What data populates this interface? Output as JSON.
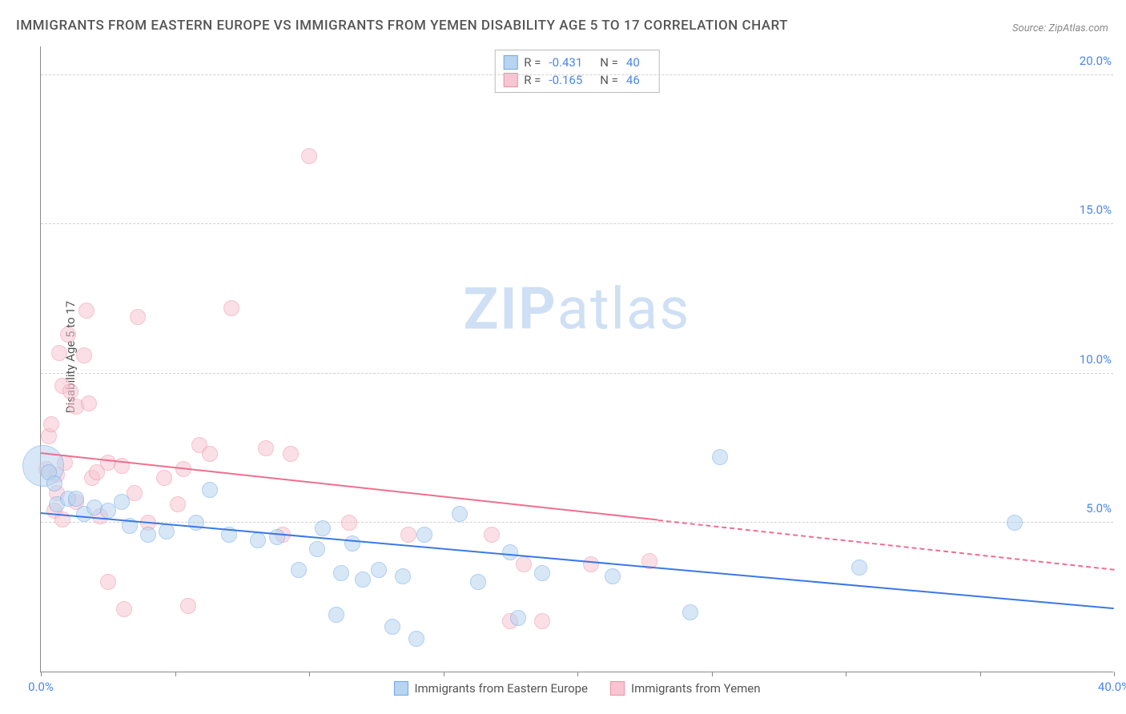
{
  "title": "IMMIGRANTS FROM EASTERN EUROPE VS IMMIGRANTS FROM YEMEN DISABILITY AGE 5 TO 17 CORRELATION CHART",
  "source": "Source: ZipAtlas.com",
  "ylabel": "Disability Age 5 to 17",
  "watermark_bold": "ZIP",
  "watermark_rest": "atlas",
  "chart": {
    "type": "scatter",
    "xlim": [
      0,
      40
    ],
    "ylim": [
      0,
      21
    ],
    "x_ticks": [
      0,
      5,
      10,
      15,
      20,
      25,
      30,
      35,
      40
    ],
    "x_tick_labels": {
      "0": "0.0%",
      "40": "40.0%"
    },
    "y_ticks": [
      5,
      10,
      15,
      20
    ],
    "y_tick_labels": [
      "5.0%",
      "10.0%",
      "15.0%",
      "20.0%"
    ],
    "grid_color": "#d0d0d0",
    "background_color": "#ffffff",
    "axis_color": "#888888"
  },
  "series": [
    {
      "key": "eastern_europe",
      "label": "Immigrants from Eastern Europe",
      "fill": "#b8d4f0",
      "stroke": "#6fa8e8",
      "fill_opacity": 0.55,
      "R": "-0.431",
      "N": "40",
      "marker_radius": 10,
      "trend": {
        "x1": 0,
        "y1": 5.3,
        "x2": 40,
        "y2": 2.1,
        "color": "#3b78e7",
        "solid_until_x": 40
      },
      "points": [
        [
          0.1,
          6.9,
          26
        ],
        [
          0.3,
          6.7
        ],
        [
          0.5,
          6.3
        ],
        [
          0.6,
          5.6
        ],
        [
          1.0,
          5.8
        ],
        [
          1.3,
          5.8
        ],
        [
          1.6,
          5.3
        ],
        [
          2.0,
          5.5
        ],
        [
          2.5,
          5.4
        ],
        [
          3.0,
          5.7
        ],
        [
          3.3,
          4.9
        ],
        [
          4.0,
          4.6
        ],
        [
          4.7,
          4.7
        ],
        [
          5.8,
          5.0
        ],
        [
          6.3,
          6.1
        ],
        [
          7.0,
          4.6
        ],
        [
          8.1,
          4.4
        ],
        [
          8.8,
          4.5
        ],
        [
          9.6,
          3.4
        ],
        [
          10.3,
          4.1
        ],
        [
          10.5,
          4.8
        ],
        [
          11.0,
          1.9
        ],
        [
          11.2,
          3.3
        ],
        [
          11.6,
          4.3
        ],
        [
          12.0,
          3.1
        ],
        [
          12.6,
          3.4
        ],
        [
          13.1,
          1.5
        ],
        [
          13.5,
          3.2
        ],
        [
          14.0,
          1.1
        ],
        [
          14.3,
          4.6
        ],
        [
          15.6,
          5.3
        ],
        [
          16.3,
          3.0
        ],
        [
          17.5,
          4.0
        ],
        [
          17.8,
          1.8
        ],
        [
          18.7,
          3.3
        ],
        [
          21.3,
          3.2
        ],
        [
          24.2,
          2.0
        ],
        [
          25.3,
          7.2
        ],
        [
          30.5,
          3.5
        ],
        [
          36.3,
          5.0
        ]
      ]
    },
    {
      "key": "yemen",
      "label": "Immigrants from Yemen",
      "fill": "#f7c6d2",
      "stroke": "#ef8fa8",
      "fill_opacity": 0.55,
      "R": "-0.165",
      "N": "46",
      "marker_radius": 10,
      "trend": {
        "x1": 0,
        "y1": 7.3,
        "x2": 40,
        "y2": 3.4,
        "color": "#ef6e8f",
        "solid_until_x": 23
      },
      "points": [
        [
          0.2,
          6.8
        ],
        [
          0.3,
          7.9
        ],
        [
          0.4,
          8.3
        ],
        [
          0.5,
          5.4
        ],
        [
          0.6,
          6.0
        ],
        [
          0.6,
          6.6
        ],
        [
          0.7,
          10.7
        ],
        [
          0.8,
          9.6
        ],
        [
          0.8,
          5.1
        ],
        [
          0.9,
          7.0
        ],
        [
          1.0,
          11.3
        ],
        [
          1.1,
          9.4
        ],
        [
          1.3,
          8.9
        ],
        [
          1.3,
          5.7
        ],
        [
          1.6,
          10.6
        ],
        [
          1.7,
          12.1
        ],
        [
          1.8,
          9.0
        ],
        [
          1.9,
          6.5
        ],
        [
          2.1,
          6.7
        ],
        [
          2.2,
          5.2
        ],
        [
          2.5,
          7.0
        ],
        [
          2.5,
          3.0
        ],
        [
          3.0,
          6.9
        ],
        [
          3.1,
          2.1
        ],
        [
          3.5,
          6.0
        ],
        [
          3.6,
          11.9
        ],
        [
          4.0,
          5.0
        ],
        [
          4.6,
          6.5
        ],
        [
          5.1,
          5.6
        ],
        [
          5.3,
          6.8
        ],
        [
          5.5,
          2.2
        ],
        [
          5.9,
          7.6
        ],
        [
          6.3,
          7.3
        ],
        [
          7.1,
          12.2
        ],
        [
          8.4,
          7.5
        ],
        [
          9.0,
          4.6
        ],
        [
          9.3,
          7.3
        ],
        [
          10.0,
          17.3
        ],
        [
          11.5,
          5.0
        ],
        [
          13.7,
          4.6
        ],
        [
          16.8,
          4.6
        ],
        [
          17.5,
          1.7
        ],
        [
          18.0,
          3.6
        ],
        [
          18.7,
          1.7
        ],
        [
          20.5,
          3.6
        ],
        [
          22.7,
          3.7
        ]
      ]
    }
  ]
}
